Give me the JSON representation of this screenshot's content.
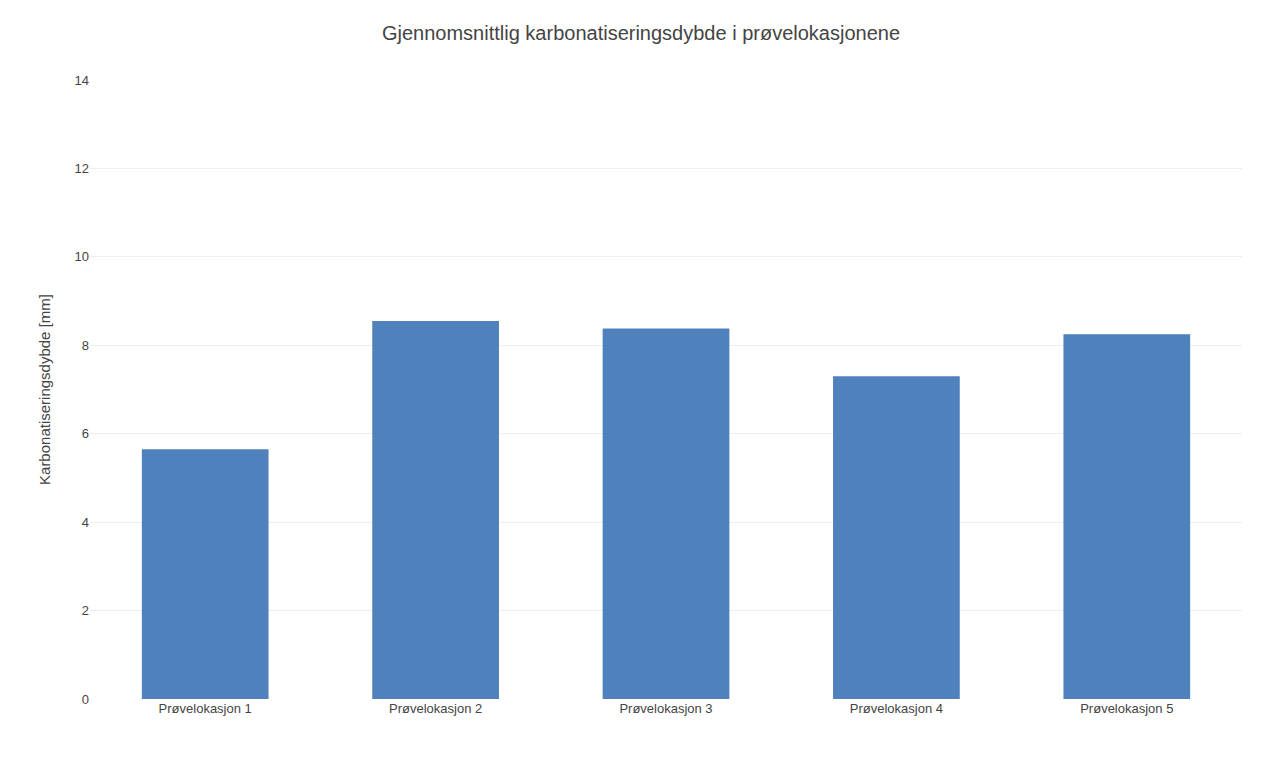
{
  "chart_data": {
    "type": "bar",
    "title": "Gjennomsnittlig karbonatiseringsdybde i prøvelokasjonene",
    "categories": [
      "Prøvelokasjon 1",
      "Prøvelokasjon 2",
      "Prøvelokasjon 3",
      "Prøvelokasjon 4",
      "Prøvelokasjon 5"
    ],
    "values": [
      5.65,
      8.55,
      8.38,
      7.3,
      8.25
    ],
    "color": "#4F81BD",
    "ylabel": "Karbonatiseringsdybde [mm]",
    "ylim": [
      0,
      14
    ],
    "yticks": [
      0,
      2,
      4,
      6,
      8,
      10,
      12,
      14
    ],
    "grid": true
  }
}
